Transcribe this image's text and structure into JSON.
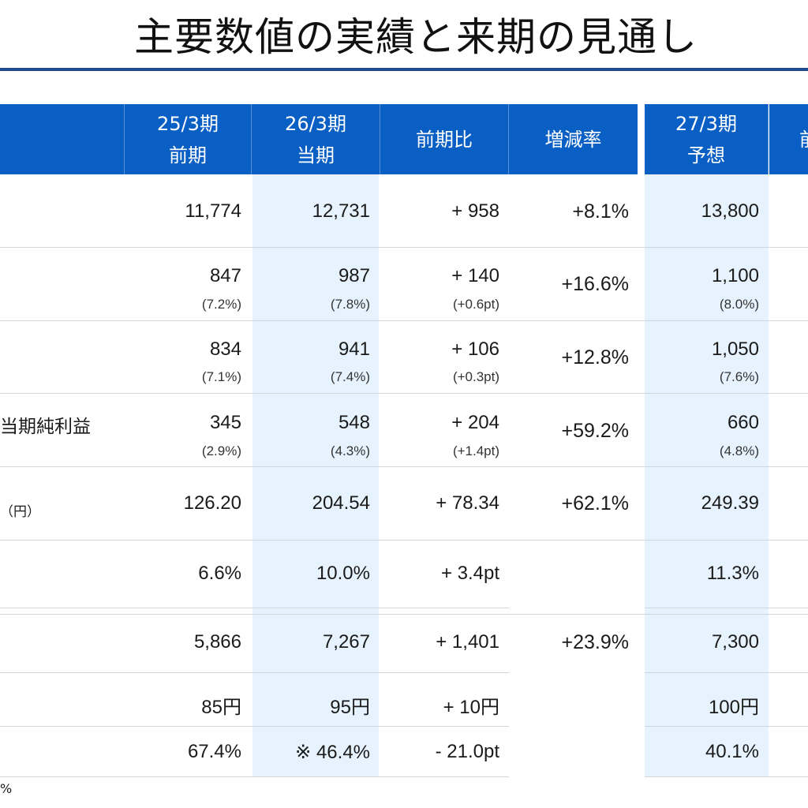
{
  "title": "主要数値の実績と来期の見通し",
  "headers": {
    "prev": {
      "line1": "25/3期",
      "line2": "前期"
    },
    "curr": {
      "line1": "26/3期",
      "line2": "当期"
    },
    "diff": {
      "line1": "前期比"
    },
    "rate": {
      "line1": "増減率"
    },
    "fcst": {
      "line1": "27/3期",
      "line2": "予想"
    },
    "cut": {
      "line1": "前"
    }
  },
  "rows": [
    {
      "label": "",
      "prev": "11,774",
      "curr": "12,731",
      "diff": "+ 958",
      "rate": "+8.1%",
      "fcst": "13,800"
    },
    {
      "label": "",
      "prev": "847",
      "prev_sub": "(7.2%)",
      "curr": "987",
      "curr_sub": "(7.8%)",
      "diff": "+ 140",
      "diff_sub": "(+0.6pt)",
      "rate": "+16.6%",
      "fcst": "1,100",
      "fcst_sub": "(8.0%)"
    },
    {
      "label": "",
      "prev": "834",
      "prev_sub": "(7.1%)",
      "curr": "941",
      "curr_sub": "(7.4%)",
      "diff": "+ 106",
      "diff_sub": "(+0.3pt)",
      "rate": "+12.8%",
      "fcst": "1,050",
      "fcst_sub": "(7.6%)"
    },
    {
      "label": "当期純利益",
      "prev": "345",
      "prev_sub": "(2.9%)",
      "curr": "548",
      "curr_sub": "(4.3%)",
      "diff": "+ 204",
      "diff_sub": "(+1.4pt)",
      "rate": "+59.2%",
      "fcst": "660",
      "fcst_sub": "(4.8%)"
    },
    {
      "label": "（円）",
      "prev": "126.20",
      "curr": "204.54",
      "diff": "+ 78.34",
      "rate": "+62.1%",
      "fcst": "249.39"
    },
    {
      "label": "",
      "prev": "6.6%",
      "curr": "10.0%",
      "diff": "+ 3.4pt",
      "rate": "",
      "fcst": "11.3%"
    },
    {
      "label": "",
      "prev": "5,866",
      "curr": "7,267",
      "diff": "+ 1,401",
      "rate": "+23.9%",
      "fcst": "7,300"
    },
    {
      "label": "",
      "prev": "85円",
      "curr": "95円",
      "diff": "+ 10円",
      "rate": "",
      "fcst": "100円"
    },
    {
      "label": "",
      "prev": "67.4%",
      "curr": "※ 46.4%",
      "diff": "- 21.0pt",
      "rate": "",
      "fcst": "40.1%"
    }
  ],
  "footnote": "%"
}
